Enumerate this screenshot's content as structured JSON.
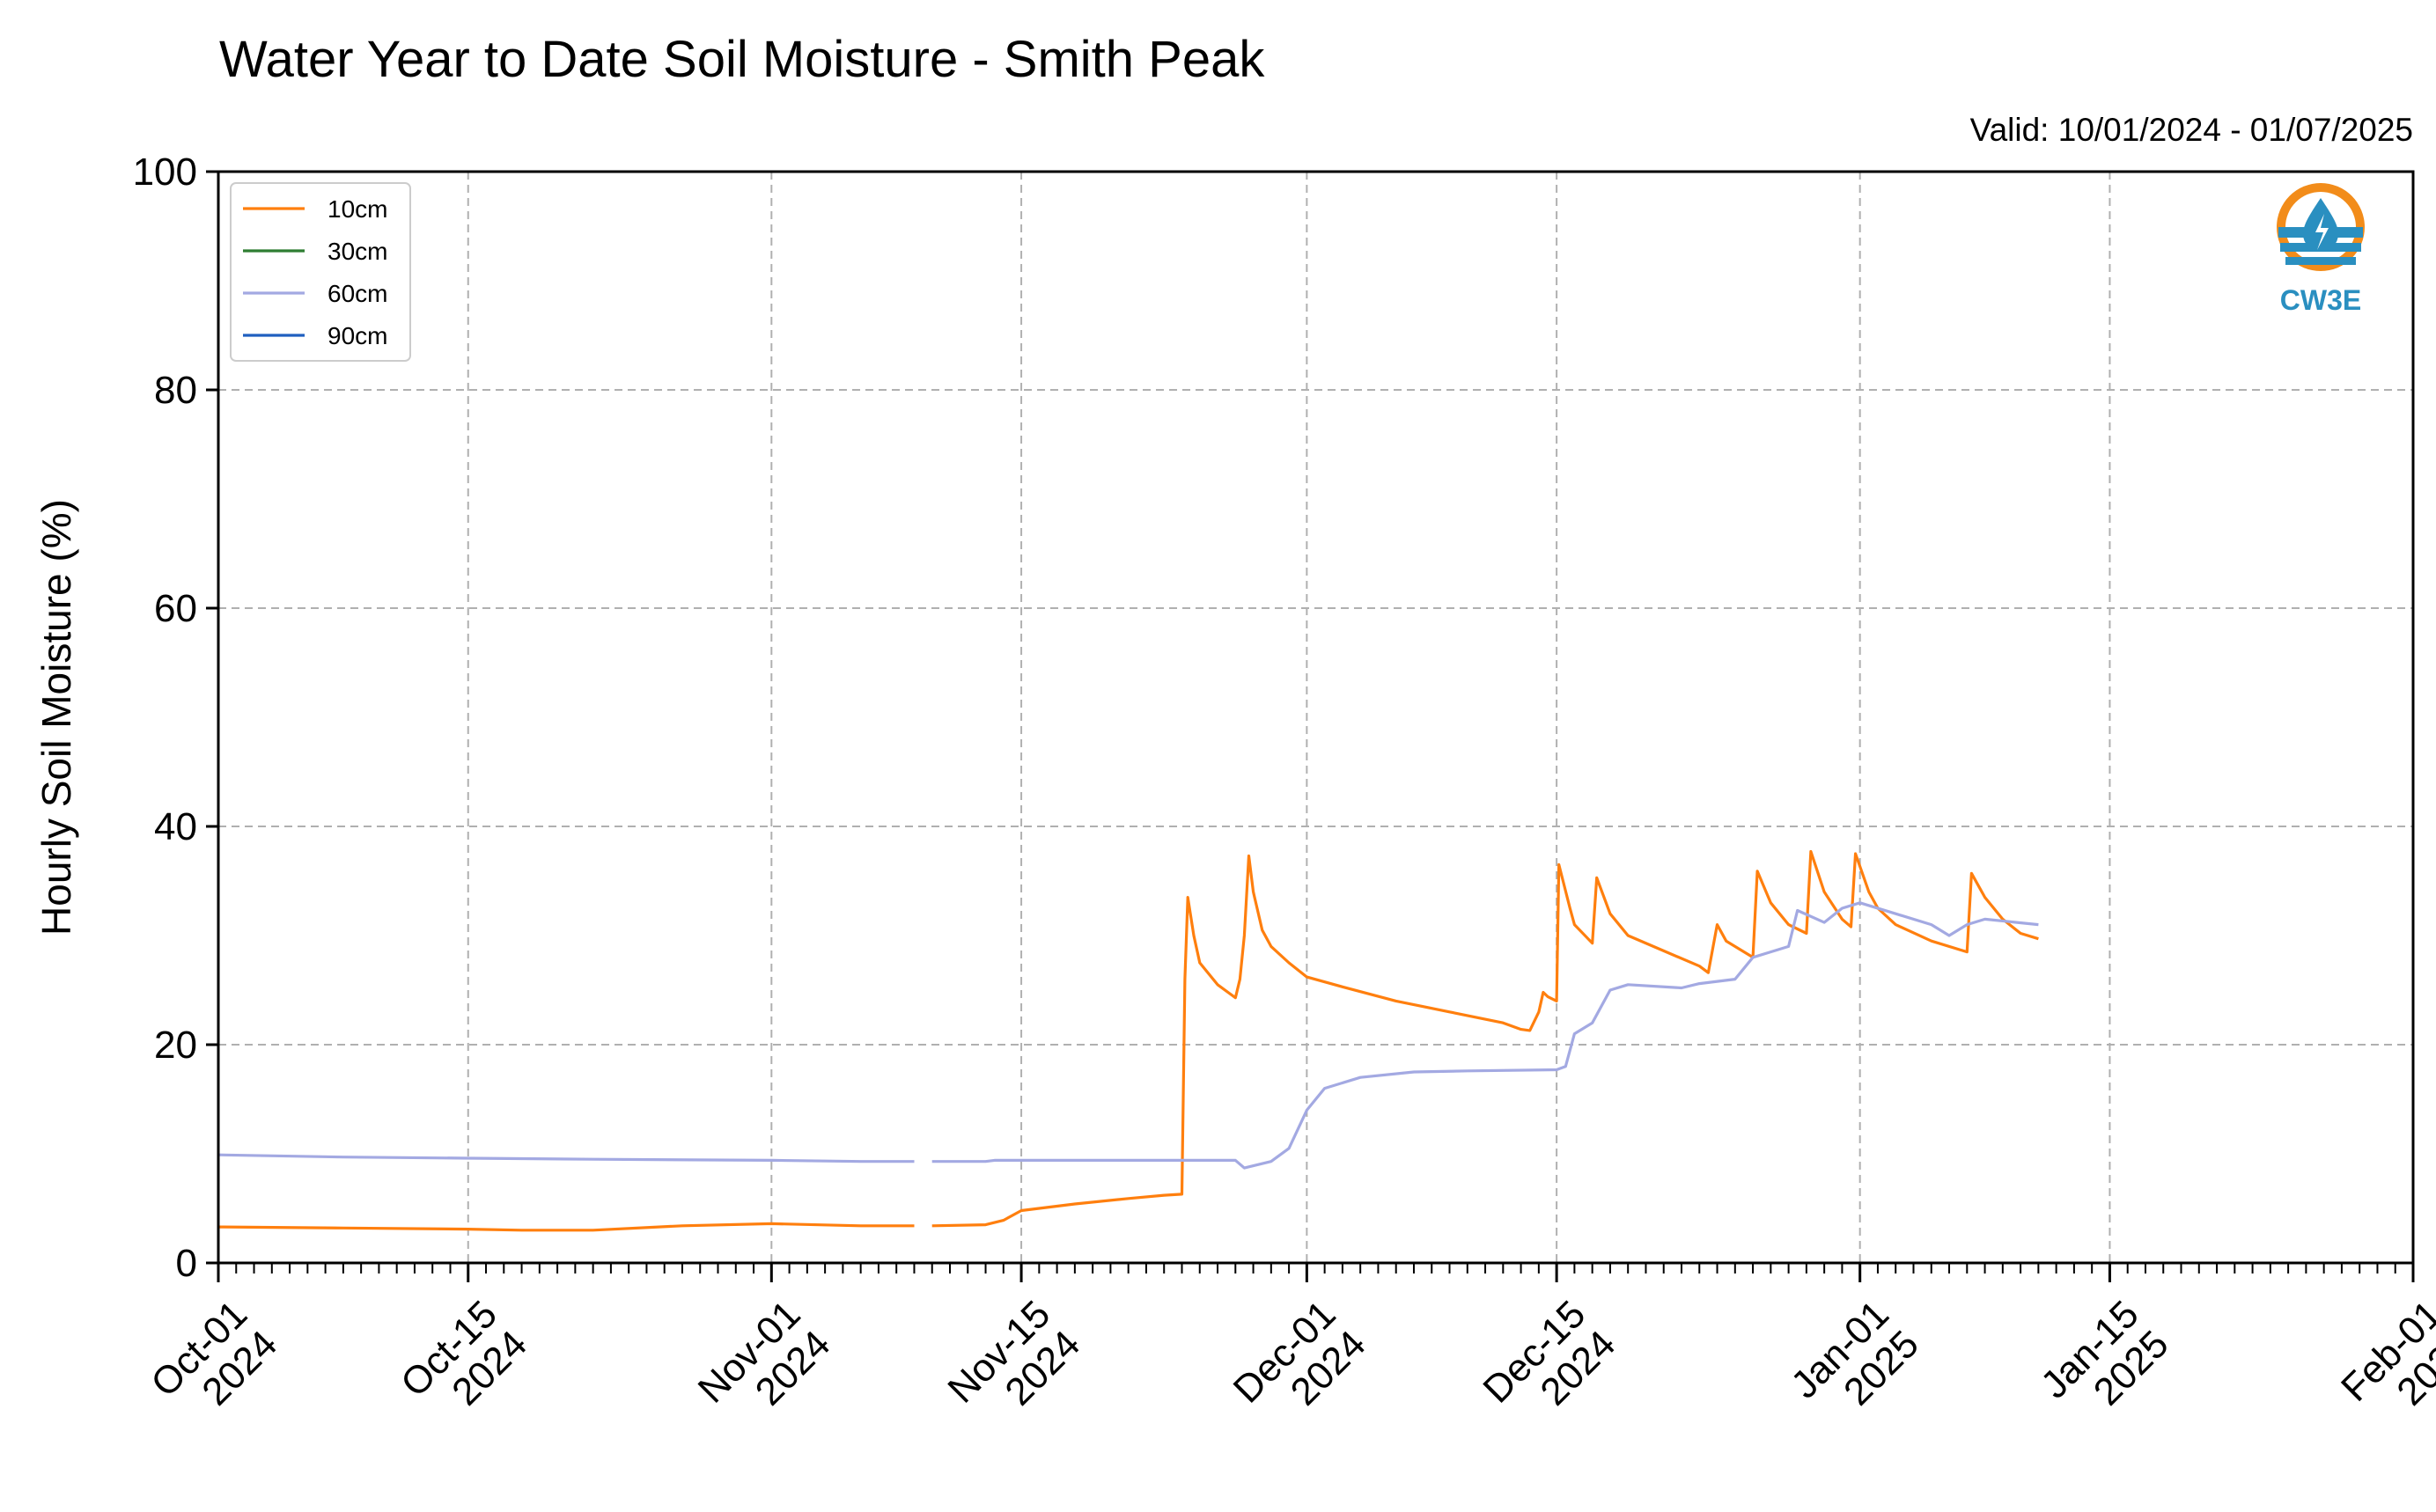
{
  "header": {
    "title": "Water Year to Date Soil Moisture - Smith Peak",
    "valid": "Valid: 10/01/2024 - 01/07/2025"
  },
  "logo": {
    "text": "CW3E",
    "color": "#2a8fc0",
    "accent": "#f28c1a",
    "icon": "water-drop-logo-icon"
  },
  "colors": {
    "grid": "#b0b0b0"
  },
  "chart_data": {
    "type": "line",
    "ylabel": "Hourly Soil Moisture (%)",
    "ylim": [
      0,
      100
    ],
    "yticks": [
      "0",
      "20",
      "40",
      "60",
      "80",
      "100"
    ],
    "xlim": [
      "2024-10-01",
      "2025-02-01"
    ],
    "xtick_dates": [
      "2024-10-01",
      "2024-10-15",
      "2024-11-01",
      "2024-11-15",
      "2024-12-01",
      "2024-12-15",
      "2025-01-01",
      "2025-01-15",
      "2025-02-01"
    ],
    "xtick_labels": [
      [
        "Oct-01",
        "2024"
      ],
      [
        "Oct-15",
        "2024"
      ],
      [
        "Nov-01",
        "2024"
      ],
      [
        "Nov-15",
        "2024"
      ],
      [
        "Dec-01",
        "2024"
      ],
      [
        "Dec-15",
        "2024"
      ],
      [
        "Jan-01",
        "2025"
      ],
      [
        "Jan-15",
        "2025"
      ],
      [
        "Feb-01",
        "2025"
      ]
    ],
    "grid": true,
    "legend_position": "top-left",
    "series": [
      {
        "name": "10cm",
        "color": "#ff7f0e",
        "points": [
          [
            "2024-10-01",
            3.3
          ],
          [
            "2024-10-08",
            3.2
          ],
          [
            "2024-10-15",
            3.1
          ],
          [
            "2024-10-18",
            3.0
          ],
          [
            "2024-10-22",
            3.0
          ],
          [
            "2024-10-27",
            3.4
          ],
          [
            "2024-11-01",
            3.6
          ],
          [
            "2024-11-06",
            3.4
          ],
          [
            "2024-11-09",
            3.4
          ],
          null,
          [
            "2024-11-10",
            3.4
          ],
          [
            "2024-11-13",
            3.5
          ],
          [
            "2024-11-14",
            3.9
          ],
          [
            "2024-11-15",
            4.8
          ],
          [
            "2024-11-18",
            5.4
          ],
          [
            "2024-11-21",
            5.9
          ],
          [
            "2024-11-23",
            6.2
          ],
          [
            "2024-11-24",
            6.3
          ],
          [
            "2024-11-24T04",
            26.0
          ],
          [
            "2024-11-24T08",
            33.5
          ],
          [
            "2024-11-24T16",
            30.0
          ],
          [
            "2024-11-25",
            27.5
          ],
          [
            "2024-11-26",
            25.5
          ],
          [
            "2024-11-27",
            24.3
          ],
          [
            "2024-11-27T06",
            26.0
          ],
          [
            "2024-11-27T12",
            30.0
          ],
          [
            "2024-11-27T18",
            37.3
          ],
          [
            "2024-11-28",
            34.0
          ],
          [
            "2024-11-28T12",
            30.5
          ],
          [
            "2024-11-29",
            29.0
          ],
          [
            "2024-11-30",
            27.5
          ],
          [
            "2024-12-01",
            26.2
          ],
          [
            "2024-12-03",
            25.3
          ],
          [
            "2024-12-06",
            24.0
          ],
          [
            "2024-12-09",
            23.0
          ],
          [
            "2024-12-12",
            22.0
          ],
          [
            "2024-12-13",
            21.4
          ],
          [
            "2024-12-13T12",
            21.3
          ],
          [
            "2024-12-14",
            23.0
          ],
          [
            "2024-12-14T06",
            24.8
          ],
          [
            "2024-12-14T12",
            24.4
          ],
          [
            "2024-12-15",
            24.0
          ],
          [
            "2024-12-15T03",
            36.5
          ],
          [
            "2024-12-15T18",
            32.5
          ],
          [
            "2024-12-16",
            31.0
          ],
          [
            "2024-12-17",
            29.3
          ],
          [
            "2024-12-17T06",
            35.3
          ],
          [
            "2024-12-18",
            32.0
          ],
          [
            "2024-12-19",
            30.0
          ],
          [
            "2024-12-21",
            28.6
          ],
          [
            "2024-12-23",
            27.2
          ],
          [
            "2024-12-23T12",
            26.6
          ],
          [
            "2024-12-24",
            31.0
          ],
          [
            "2024-12-24T12",
            29.5
          ],
          [
            "2024-12-26",
            28.0
          ],
          [
            "2024-12-26T06",
            35.9
          ],
          [
            "2024-12-27",
            33.0
          ],
          [
            "2024-12-28",
            31.0
          ],
          [
            "2024-12-29",
            30.2
          ],
          [
            "2024-12-29T06",
            37.7
          ],
          [
            "2024-12-30",
            34.0
          ],
          [
            "2024-12-31",
            31.5
          ],
          [
            "2024-12-31T12",
            30.8
          ],
          [
            "2024-12-31T18",
            37.5
          ],
          [
            "2025-01-01T12",
            34.0
          ],
          [
            "2025-01-02",
            32.5
          ],
          [
            "2025-01-03",
            31.0
          ],
          [
            "2025-01-05",
            29.5
          ],
          [
            "2025-01-07",
            28.5
          ],
          [
            "2025-01-07T06",
            35.7
          ],
          [
            "2025-01-08",
            33.5
          ],
          [
            "2025-01-09",
            31.5
          ],
          [
            "2025-01-10",
            30.2
          ],
          [
            "2025-01-11",
            29.7
          ]
        ]
      },
      {
        "name": "30cm",
        "color": "#2e7d32",
        "points": []
      },
      {
        "name": "60cm",
        "color": "#a3a9e2",
        "points": [
          [
            "2024-10-01",
            9.9
          ],
          [
            "2024-10-08",
            9.7
          ],
          [
            "2024-10-15",
            9.6
          ],
          [
            "2024-10-22",
            9.5
          ],
          [
            "2024-11-01",
            9.4
          ],
          [
            "2024-11-06",
            9.3
          ],
          [
            "2024-11-09",
            9.3
          ],
          null,
          [
            "2024-11-10",
            9.3
          ],
          [
            "2024-11-13",
            9.3
          ],
          [
            "2024-11-13T12",
            9.4
          ],
          [
            "2024-11-20",
            9.4
          ],
          [
            "2024-11-27",
            9.4
          ],
          [
            "2024-11-27T12",
            8.7
          ],
          [
            "2024-11-29",
            9.3
          ],
          [
            "2024-11-30",
            10.5
          ],
          [
            "2024-12-01",
            14.0
          ],
          [
            "2024-12-02",
            16.0
          ],
          [
            "2024-12-04",
            17.0
          ],
          [
            "2024-12-07",
            17.5
          ],
          [
            "2024-12-10",
            17.6
          ],
          [
            "2024-12-15",
            17.7
          ],
          [
            "2024-12-15T12",
            18.0
          ],
          [
            "2024-12-16",
            21.0
          ],
          [
            "2024-12-17",
            22.0
          ],
          [
            "2024-12-18",
            25.0
          ],
          [
            "2024-12-19",
            25.5
          ],
          [
            "2024-12-22",
            25.2
          ],
          [
            "2024-12-23",
            25.6
          ],
          [
            "2024-12-25",
            26.0
          ],
          [
            "2024-12-26",
            28.0
          ],
          [
            "2024-12-27",
            28.5
          ],
          [
            "2024-12-28",
            29.0
          ],
          [
            "2024-12-28T12",
            32.3
          ],
          [
            "2024-12-30",
            31.2
          ],
          [
            "2024-12-31",
            32.5
          ],
          [
            "2025-01-01",
            33.0
          ],
          [
            "2025-01-03",
            32.0
          ],
          [
            "2025-01-05",
            31.0
          ],
          [
            "2025-01-06",
            30.0
          ],
          [
            "2025-01-07",
            31.0
          ],
          [
            "2025-01-08",
            31.5
          ],
          [
            "2025-01-11",
            31.0
          ]
        ]
      },
      {
        "name": "90cm",
        "color": "#1f5fbf",
        "points": []
      }
    ]
  }
}
